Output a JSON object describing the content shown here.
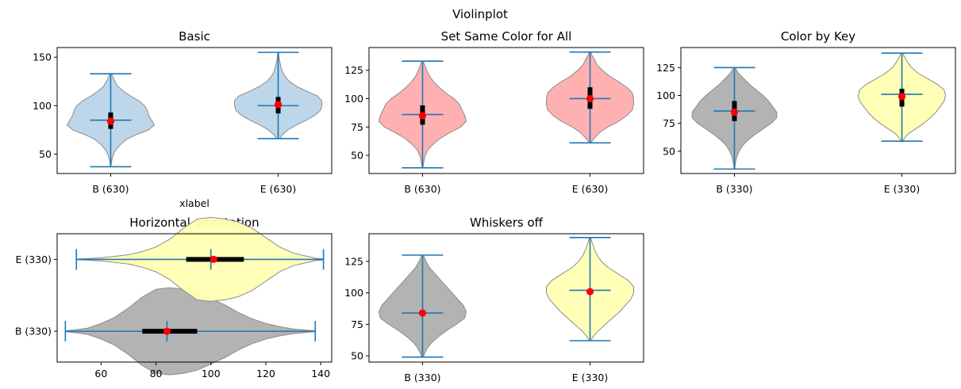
{
  "chart_data": {
    "suptitle": "Violinplot",
    "colors": {
      "blue_fill": "#b9d4e9",
      "red_fill": "#ffadad",
      "gray_fill": "#afafaf",
      "yellow_fill": "#ffffb3",
      "line": "#1f77b4",
      "box": "#000000",
      "median": "#ff0000"
    },
    "panels": [
      {
        "type": "violin",
        "title": "Basic",
        "orientation": "vertical",
        "xlabel": "xlabel",
        "ylabel": "",
        "ylim": [
          30,
          160
        ],
        "ticks": [
          50,
          100,
          150
        ],
        "categories": [
          "B (630)",
          "E (630)"
        ],
        "series": [
          {
            "fill": "blue_fill",
            "min": 37,
            "max": 133,
            "mean": 85,
            "q1": 76,
            "q3": 93,
            "median": 84,
            "profile": [
              [
                37,
                0.2
              ],
              [
                40,
                0.4
              ],
              [
                45,
                1
              ],
              [
                50,
                2
              ],
              [
                55,
                4
              ],
              [
                60,
                7
              ],
              [
                65,
                11
              ],
              [
                70,
                18
              ],
              [
                75,
                27
              ],
              [
                80,
                31
              ],
              [
                85,
                29
              ],
              [
                90,
                27
              ],
              [
                95,
                26
              ],
              [
                100,
                24
              ],
              [
                105,
                20
              ],
              [
                110,
                14
              ],
              [
                115,
                9
              ],
              [
                120,
                5
              ],
              [
                125,
                3
              ],
              [
                130,
                1.5
              ],
              [
                133,
                0.5
              ]
            ]
          },
          {
            "fill": "blue_fill",
            "min": 66,
            "max": 155,
            "mean": 100,
            "q1": 92,
            "q3": 109,
            "median": 101,
            "profile": [
              [
                66,
                1
              ],
              [
                70,
                3
              ],
              [
                75,
                7
              ],
              [
                80,
                13
              ],
              [
                85,
                20
              ],
              [
                90,
                26
              ],
              [
                95,
                30
              ],
              [
                100,
                31
              ],
              [
                105,
                31
              ],
              [
                110,
                28
              ],
              [
                115,
                20
              ],
              [
                120,
                13
              ],
              [
                125,
                8
              ],
              [
                130,
                5
              ],
              [
                135,
                3
              ],
              [
                140,
                2
              ],
              [
                145,
                1.2
              ],
              [
                150,
                0.6
              ],
              [
                155,
                0.3
              ]
            ]
          }
        ]
      },
      {
        "type": "violin",
        "title": "Set Same Color for All",
        "orientation": "vertical",
        "xlabel": "",
        "ylabel": "",
        "ylim": [
          34,
          145
        ],
        "ticks": [
          50,
          75,
          100,
          125
        ],
        "categories": [
          "B (630)",
          "E (630)"
        ],
        "series": [
          {
            "fill": "red_fill",
            "min": 39,
            "max": 133,
            "mean": 86,
            "q1": 77,
            "q3": 94,
            "median": 85,
            "profile": [
              [
                39,
                0.3
              ],
              [
                42,
                0.6
              ],
              [
                46,
                1.2
              ],
              [
                50,
                2
              ],
              [
                55,
                4
              ],
              [
                60,
                8
              ],
              [
                65,
                13
              ],
              [
                70,
                20
              ],
              [
                75,
                28
              ],
              [
                80,
                32
              ],
              [
                85,
                31
              ],
              [
                90,
                29
              ],
              [
                95,
                27
              ],
              [
                100,
                23
              ],
              [
                105,
                17
              ],
              [
                110,
                12
              ],
              [
                115,
                8
              ],
              [
                120,
                5
              ],
              [
                125,
                3
              ],
              [
                130,
                1.5
              ],
              [
                133,
                0.5
              ]
            ]
          },
          {
            "fill": "red_fill",
            "min": 61,
            "max": 141,
            "mean": 100,
            "q1": 91,
            "q3": 110,
            "median": 100,
            "profile": [
              [
                61,
                0.5
              ],
              [
                65,
                3
              ],
              [
                70,
                7
              ],
              [
                75,
                13
              ],
              [
                80,
                21
              ],
              [
                85,
                27
              ],
              [
                90,
                31
              ],
              [
                95,
                32
              ],
              [
                100,
                32
              ],
              [
                105,
                31
              ],
              [
                110,
                27
              ],
              [
                115,
                21
              ],
              [
                120,
                14
              ],
              [
                125,
                9
              ],
              [
                130,
                5
              ],
              [
                135,
                3
              ],
              [
                138,
                1.5
              ],
              [
                141,
                0.5
              ]
            ]
          }
        ]
      },
      {
        "type": "violin",
        "title": "Color by Key",
        "orientation": "vertical",
        "xlabel": "",
        "ylabel": "",
        "ylim": [
          30,
          143
        ],
        "ticks": [
          50,
          75,
          100,
          125
        ],
        "categories": [
          "B (330)",
          "E (330)"
        ],
        "series": [
          {
            "fill": "gray_fill",
            "min": 34,
            "max": 125,
            "mean": 86,
            "q1": 77,
            "q3": 95,
            "median": 85,
            "profile": [
              [
                34,
                0.2
              ],
              [
                38,
                0.6
              ],
              [
                42,
                1.2
              ],
              [
                46,
                2
              ],
              [
                50,
                3.5
              ],
              [
                55,
                6
              ],
              [
                60,
                10
              ],
              [
                65,
                15
              ],
              [
                70,
                21
              ],
              [
                75,
                27
              ],
              [
                80,
                31
              ],
              [
                85,
                31
              ],
              [
                90,
                28
              ],
              [
                95,
                25
              ],
              [
                100,
                21
              ],
              [
                105,
                16
              ],
              [
                110,
                11
              ],
              [
                115,
                7
              ],
              [
                120,
                3
              ],
              [
                125,
                0.5
              ]
            ]
          },
          {
            "fill": "yellow_fill",
            "min": 59,
            "max": 138,
            "mean": 101,
            "q1": 90,
            "q3": 106,
            "median": 99,
            "profile": [
              [
                59,
                0.5
              ],
              [
                62,
                2
              ],
              [
                66,
                5
              ],
              [
                70,
                10
              ],
              [
                75,
                16
              ],
              [
                80,
                21
              ],
              [
                85,
                25
              ],
              [
                90,
                28
              ],
              [
                95,
                31
              ],
              [
                100,
                32
              ],
              [
                105,
                31
              ],
              [
                110,
                26
              ],
              [
                115,
                19
              ],
              [
                120,
                12
              ],
              [
                125,
                7
              ],
              [
                130,
                4
              ],
              [
                135,
                1.8
              ],
              [
                138,
                0.5
              ]
            ]
          }
        ]
      },
      {
        "type": "violin",
        "title": "Horizontal orientation",
        "orientation": "horizontal",
        "xlabel": "",
        "ylabel": "",
        "xlim": [
          44,
          144
        ],
        "ticks": [
          60,
          80,
          100,
          120,
          140
        ],
        "categories": [
          "B (330)",
          "E (330)"
        ],
        "series": [
          {
            "fill": "gray_fill",
            "min": 47,
            "max": 138,
            "mean": 84,
            "q1": 75,
            "q3": 95,
            "median": 84,
            "profile": [
              [
                47,
                0.3
              ],
              [
                50,
                0.8
              ],
              [
                55,
                2
              ],
              [
                60,
                5
              ],
              [
                65,
                9
              ],
              [
                70,
                15
              ],
              [
                75,
                22
              ],
              [
                80,
                27
              ],
              [
                85,
                28
              ],
              [
                90,
                27
              ],
              [
                95,
                25
              ],
              [
                100,
                21
              ],
              [
                105,
                17
              ],
              [
                110,
                12
              ],
              [
                115,
                8
              ],
              [
                120,
                5
              ],
              [
                125,
                3
              ],
              [
                130,
                1.5
              ],
              [
                135,
                0.7
              ],
              [
                138,
                0.3
              ]
            ]
          },
          {
            "fill": "yellow_fill",
            "min": 51,
            "max": 141,
            "mean": 100,
            "q1": 91,
            "q3": 112,
            "median": 101,
            "profile": [
              [
                51,
                0.2
              ],
              [
                55,
                0.5
              ],
              [
                60,
                1
              ],
              [
                65,
                2
              ],
              [
                70,
                3
              ],
              [
                75,
                5
              ],
              [
                80,
                8
              ],
              [
                85,
                13
              ],
              [
                90,
                20
              ],
              [
                95,
                26
              ],
              [
                100,
                27
              ],
              [
                105,
                26
              ],
              [
                110,
                24
              ],
              [
                115,
                20
              ],
              [
                120,
                14
              ],
              [
                125,
                8
              ],
              [
                130,
                4
              ],
              [
                135,
                2
              ],
              [
                138,
                0.8
              ],
              [
                141,
                0.3
              ]
            ]
          }
        ]
      },
      {
        "type": "violin",
        "title": "Whiskers off",
        "orientation": "vertical",
        "xlabel": "",
        "ylabel": "",
        "ylim": [
          45,
          147
        ],
        "ticks": [
          50,
          75,
          100,
          125
        ],
        "categories": [
          "B (330)",
          "E (330)"
        ],
        "series": [
          {
            "fill": "gray_fill",
            "min": 49,
            "max": 130,
            "mean": 84,
            "median": 84,
            "profile": [
              [
                49,
                0.5
              ],
              [
                53,
                2
              ],
              [
                57,
                4
              ],
              [
                61,
                7
              ],
              [
                65,
                11
              ],
              [
                70,
                17
              ],
              [
                75,
                24
              ],
              [
                80,
                30
              ],
              [
                85,
                31
              ],
              [
                90,
                29
              ],
              [
                95,
                25
              ],
              [
                100,
                21
              ],
              [
                105,
                17
              ],
              [
                110,
                13
              ],
              [
                115,
                9
              ],
              [
                120,
                5
              ],
              [
                125,
                2.5
              ],
              [
                130,
                0.5
              ]
            ]
          },
          {
            "fill": "yellow_fill",
            "min": 62,
            "max": 144,
            "mean": 102,
            "median": 101,
            "profile": [
              [
                62,
                0.5
              ],
              [
                65,
                2
              ],
              [
                70,
                6
              ],
              [
                75,
                11
              ],
              [
                80,
                16
              ],
              [
                85,
                21
              ],
              [
                90,
                25
              ],
              [
                95,
                29
              ],
              [
                100,
                31
              ],
              [
                105,
                31
              ],
              [
                110,
                27
              ],
              [
                115,
                20
              ],
              [
                120,
                13
              ],
              [
                125,
                8
              ],
              [
                130,
                5
              ],
              [
                135,
                3
              ],
              [
                140,
                1.5
              ],
              [
                144,
                0.3
              ]
            ]
          }
        ]
      }
    ]
  }
}
